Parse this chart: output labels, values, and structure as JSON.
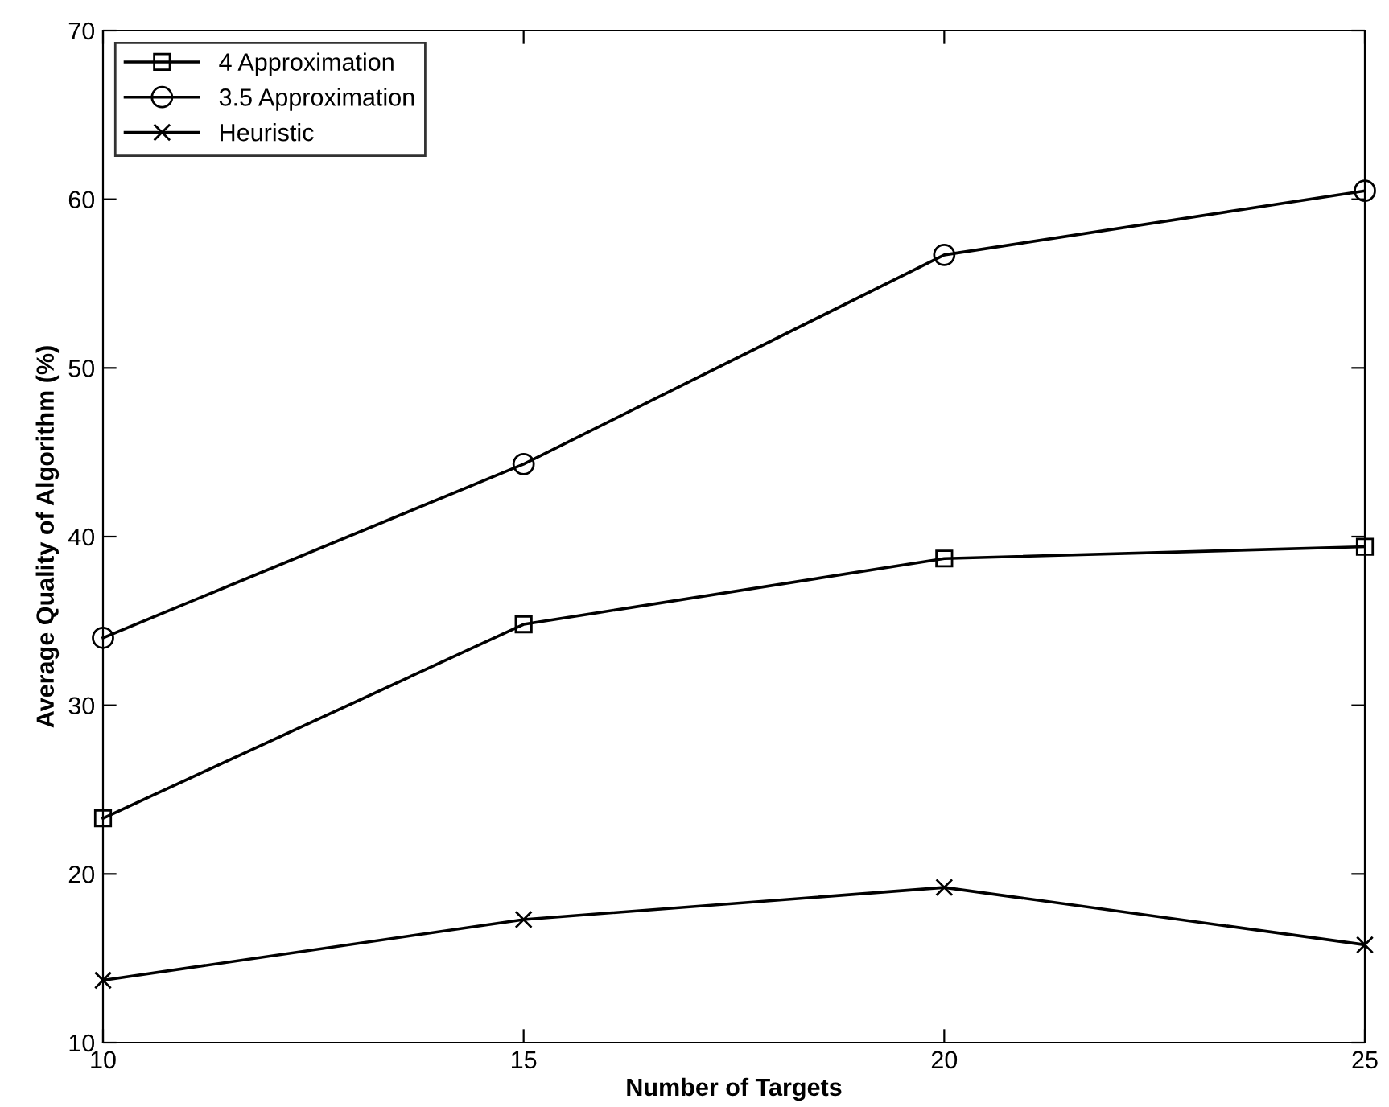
{
  "chart_data": {
    "type": "line",
    "xlabel": "Number of Targets",
    "ylabel": "Average Quality of Algorithm (%)",
    "x": [
      10,
      15,
      20,
      25
    ],
    "series": [
      {
        "name": "4 Approximation",
        "color": "#000000",
        "marker": "square",
        "values": [
          23.3,
          34.8,
          38.7,
          39.4
        ]
      },
      {
        "name": "3.5 Approximation",
        "color": "#000000",
        "marker": "circle",
        "values": [
          34.0,
          44.3,
          56.7,
          60.5
        ]
      },
      {
        "name": "Heuristic",
        "color": "#000000",
        "marker": "cross",
        "values": [
          13.7,
          17.3,
          19.2,
          15.8
        ]
      }
    ],
    "xlim": [
      10,
      25
    ],
    "xticks": [
      10,
      15,
      20,
      25
    ],
    "ylim": [
      10,
      70
    ],
    "yticks": [
      10,
      20,
      30,
      40,
      50,
      60,
      70
    ],
    "grid": false,
    "legend": "top left",
    "line_style": "solid"
  }
}
